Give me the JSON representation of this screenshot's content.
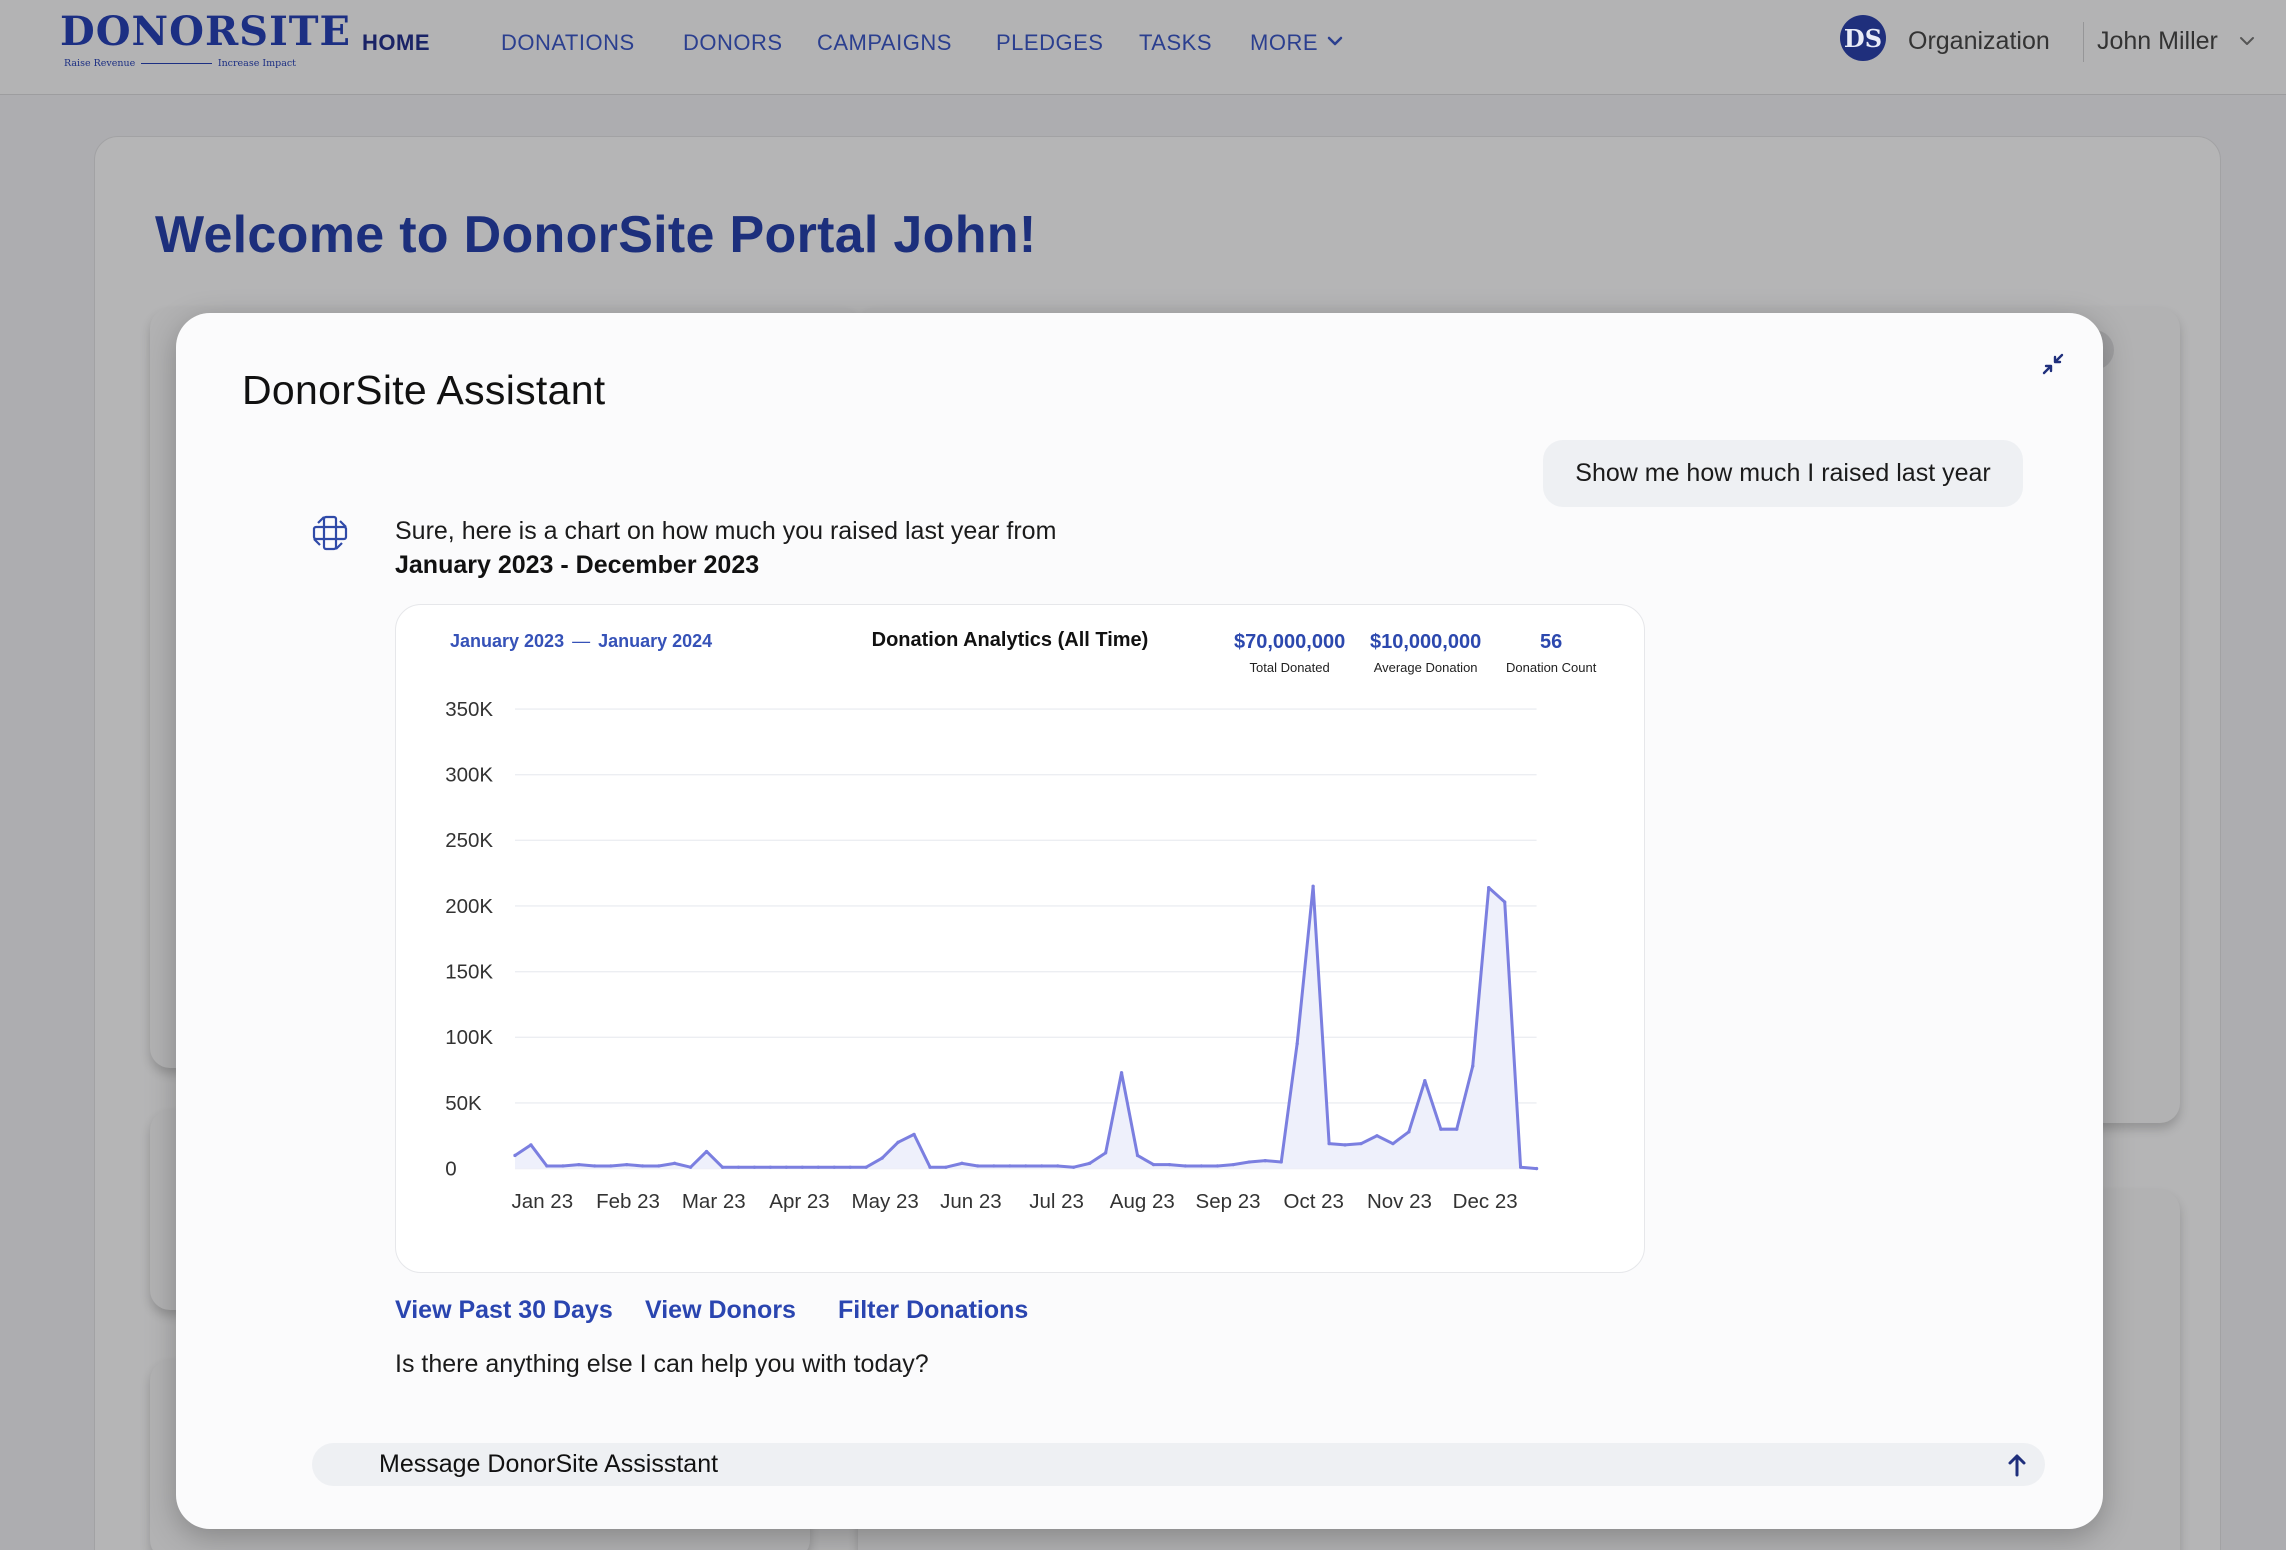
{
  "brand": {
    "name": "DONORSITE",
    "tagline_left": "Raise Revenue",
    "tagline_right": "Increase Impact"
  },
  "nav": {
    "items": [
      {
        "label": "HOME",
        "active": true
      },
      {
        "label": "DONATIONS"
      },
      {
        "label": "DONORS"
      },
      {
        "label": "CAMPAIGNS"
      },
      {
        "label": "PLEDGES"
      },
      {
        "label": "TASKS"
      },
      {
        "label": "MORE"
      }
    ],
    "org_badge": "DS",
    "org_label": "Organization",
    "user_label": "John Miller"
  },
  "page": {
    "welcome": "Welcome to DonorSite Portal John!"
  },
  "assistant": {
    "title": "DonorSite Assistant",
    "user_message": "Show me how much I raised last year",
    "bot_intro": "Sure, here is a chart on how much you raised last year from",
    "bot_range": "January 2023 - December 2023",
    "actions": [
      "View Past 30 Days",
      "View Donors",
      "Filter Donations"
    ],
    "followup": "Is there anything else I can help you with today?",
    "input_placeholder": "Message DonorSite Assisstant"
  },
  "colors": {
    "brand": "#1c2f83",
    "accent": "#2a45b0",
    "line": "#7b7fe0",
    "fill": "#eef0fb"
  },
  "chart_data": {
    "type": "area",
    "title": "Donation Analytics (All Time)",
    "range_start": "January 2023",
    "range_end": "January 2024",
    "stats": [
      {
        "value": "$70,000,000",
        "label": "Total Donated"
      },
      {
        "value": "$10,000,000",
        "label": "Average Donation"
      },
      {
        "value": "56",
        "label": "Donation Count"
      }
    ],
    "y_ticks": [
      "0",
      "50K",
      "100K",
      "150K",
      "200K",
      "250K",
      "300K",
      "350K"
    ],
    "x_ticks": [
      "Jan 23",
      "Feb 23",
      "Mar 23",
      "Apr 23",
      "May 23",
      "Jun 23",
      "Jul 23",
      "Aug 23",
      "Sep 23",
      "Oct 23",
      "Nov 23",
      "Dec 23"
    ],
    "ylim": [
      0,
      350000
    ],
    "series": [
      {
        "values": [
          10000,
          18000,
          2000,
          2000,
          3000,
          2000,
          2000,
          3000,
          2000,
          2000,
          4000,
          1000,
          13000,
          1000,
          1000,
          1000,
          1000,
          1000,
          1000,
          1000,
          1000,
          1000,
          1000,
          8000,
          20000,
          26000,
          1000,
          1000,
          4000,
          2000,
          2000,
          2000,
          2000,
          2000,
          2000,
          1000,
          4000,
          12000,
          73000,
          10000,
          3000,
          3000,
          2000,
          2000,
          2000,
          3000,
          5000,
          6000,
          5000,
          95000,
          215000,
          19000,
          18000,
          19000,
          25000,
          19000,
          28000,
          67000,
          30000,
          30000,
          78000,
          214000,
          203000,
          1000,
          0
        ]
      }
    ],
    "grid": true,
    "legend": "none"
  }
}
